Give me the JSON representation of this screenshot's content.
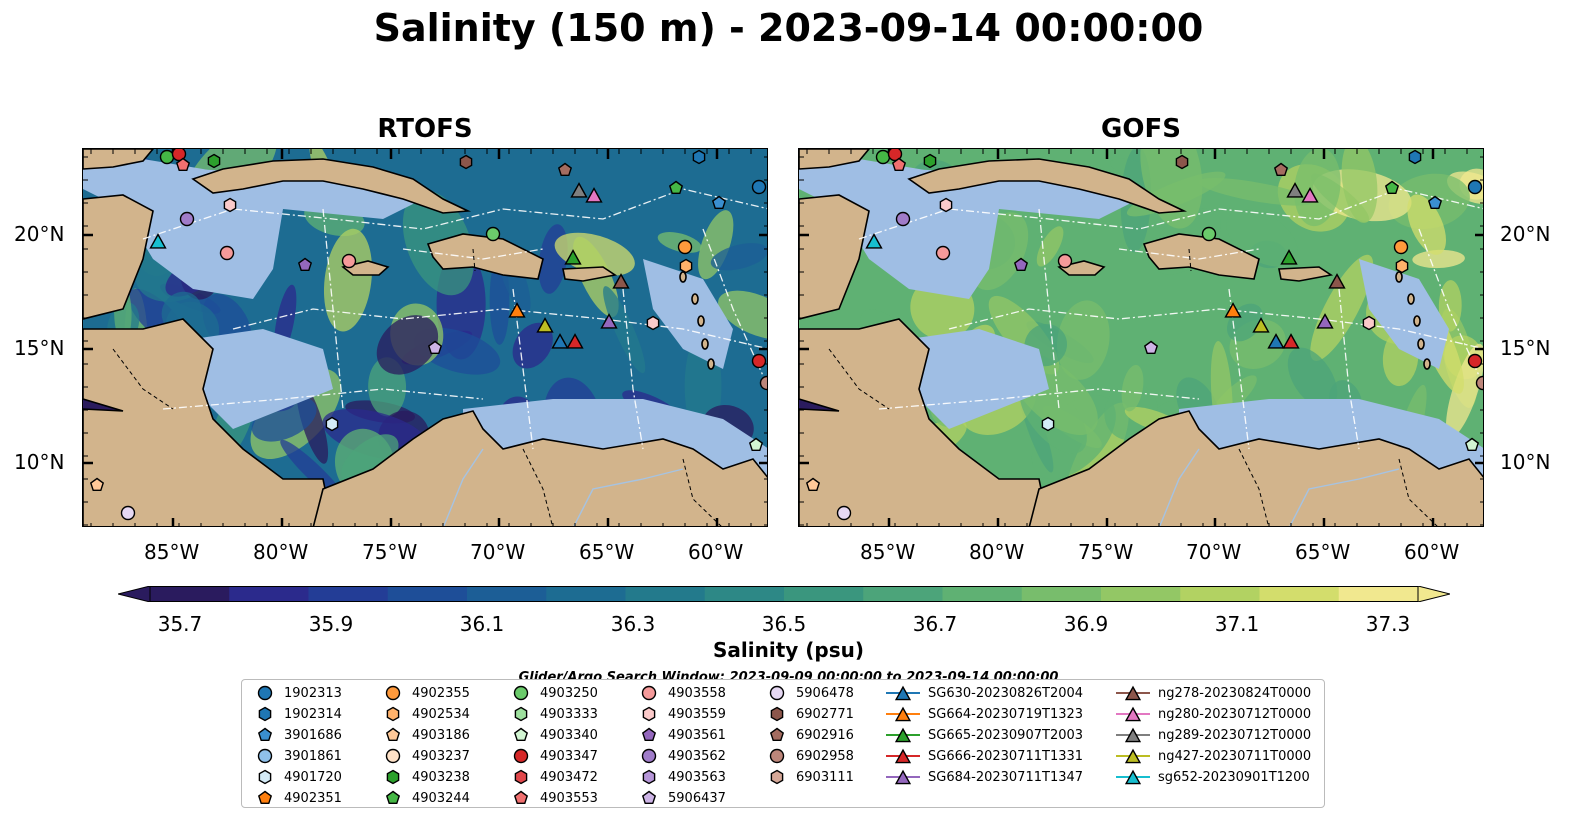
{
  "title": "Salinity (150 m) - 2023-09-14 00:00:00",
  "panels": [
    {
      "title": "RTOFS"
    },
    {
      "title": "GOFS"
    }
  ],
  "axes": {
    "lat_labels": [
      "20°N",
      "15°N",
      "10°N"
    ],
    "lon_labels": [
      "85°W",
      "80°W",
      "75°W",
      "70°W",
      "65°W",
      "60°W"
    ]
  },
  "colorbar": {
    "label": "Salinity (psu)",
    "ticks": [
      "35.7",
      "35.9",
      "36.1",
      "36.3",
      "36.5",
      "36.7",
      "36.9",
      "37.1",
      "37.3"
    ],
    "range": [
      35.7,
      37.4
    ],
    "extend": "both",
    "colors": [
      "#2a1b5e",
      "#2b2a8c",
      "#233d96",
      "#1e4e98",
      "#1c5e96",
      "#1d6c92",
      "#237a8c",
      "#2d8886",
      "#3a967e",
      "#4ca47a",
      "#5fb173",
      "#78bd6c",
      "#93c765",
      "#b2d262",
      "#d3dd6c",
      "#f1e88f"
    ]
  },
  "search_window": "Glider/Argo Search Window: 2023-09-09 00:00:00 to 2023-09-14 00:00:00",
  "legend": {
    "columns": [
      [
        {
          "label": "1902313",
          "marker": "circle",
          "color": "#1f77b4"
        },
        {
          "label": "1902314",
          "marker": "hexagon",
          "color": "#1f77b4"
        },
        {
          "label": "3901686",
          "marker": "pentagon",
          "color": "#3a8fd0"
        },
        {
          "label": "3901861",
          "marker": "circle",
          "color": "#8fc0ea"
        },
        {
          "label": "4901720",
          "marker": "hexagon",
          "color": "#d4ebf7"
        },
        {
          "label": "4902351",
          "marker": "pentagon",
          "color": "#ff7f0e"
        }
      ],
      [
        {
          "label": "4902355",
          "marker": "circle",
          "color": "#ff9a3c"
        },
        {
          "label": "4902534",
          "marker": "hexagon",
          "color": "#ffb26b"
        },
        {
          "label": "4903186",
          "marker": "pentagon",
          "color": "#ffc999"
        },
        {
          "label": "4903237",
          "marker": "circle",
          "color": "#ffe2c8"
        },
        {
          "label": "4903238",
          "marker": "hexagon",
          "color": "#2ca02c"
        },
        {
          "label": "4903244",
          "marker": "pentagon",
          "color": "#45b745"
        }
      ],
      [
        {
          "label": "4903250",
          "marker": "circle",
          "color": "#6bcb6b"
        },
        {
          "label": "4903333",
          "marker": "hexagon",
          "color": "#9ee09e"
        },
        {
          "label": "4903340",
          "marker": "pentagon",
          "color": "#d2f5d2"
        },
        {
          "label": "4903347",
          "marker": "circle",
          "color": "#d62728"
        },
        {
          "label": "4903472",
          "marker": "hexagon",
          "color": "#e0474b"
        },
        {
          "label": "4903553",
          "marker": "pentagon",
          "color": "#f07070"
        }
      ],
      [
        {
          "label": "4903558",
          "marker": "circle",
          "color": "#f59a9a"
        },
        {
          "label": "4903559",
          "marker": "hexagon",
          "color": "#fbcaca"
        },
        {
          "label": "4903561",
          "marker": "pentagon",
          "color": "#9467bd"
        },
        {
          "label": "4903562",
          "marker": "circle",
          "color": "#a07cc9"
        },
        {
          "label": "4903563",
          "marker": "hexagon",
          "color": "#b696d8"
        },
        {
          "label": "5906437",
          "marker": "pentagon",
          "color": "#cdb4e6"
        }
      ],
      [
        {
          "label": "5906478",
          "marker": "circle",
          "color": "#e6d8f3"
        },
        {
          "label": "6902771",
          "marker": "hexagon",
          "color": "#8c564b"
        },
        {
          "label": "6902916",
          "marker": "pentagon",
          "color": "#a46c60"
        },
        {
          "label": "6902958",
          "marker": "circle",
          "color": "#bd867a"
        },
        {
          "label": "6903111",
          "marker": "hexagon",
          "color": "#d6a898"
        }
      ],
      [
        {
          "label": "SG630-20230826T2004",
          "marker": "triangle-line",
          "color": "#1f77b4"
        },
        {
          "label": "SG664-20230719T1323",
          "marker": "triangle-line",
          "color": "#ff7f0e"
        },
        {
          "label": "SG665-20230907T2003",
          "marker": "triangle-line",
          "color": "#2ca02c"
        },
        {
          "label": "SG666-20230711T1331",
          "marker": "triangle-line",
          "color": "#d62728"
        },
        {
          "label": "SG684-20230711T1347",
          "marker": "triangle-line",
          "color": "#9467bd"
        }
      ],
      [
        {
          "label": "ng278-20230824T0000",
          "marker": "triangle-line",
          "color": "#8c564b"
        },
        {
          "label": "ng280-20230712T0000",
          "marker": "triangle-line",
          "color": "#e377c2"
        },
        {
          "label": "ng289-20230712T0000",
          "marker": "triangle-line",
          "color": "#7f7f7f"
        },
        {
          "label": "ng427-20230711T0000",
          "marker": "triangle-line",
          "color": "#bcbd22"
        },
        {
          "label": "sg652-20230901T1200",
          "marker": "triangle-line",
          "color": "#17becf"
        }
      ]
    ]
  },
  "map_colors": {
    "land": "#d2b48c",
    "shelf": "#9fbee4",
    "rivers": "#a6c3e2"
  }
}
